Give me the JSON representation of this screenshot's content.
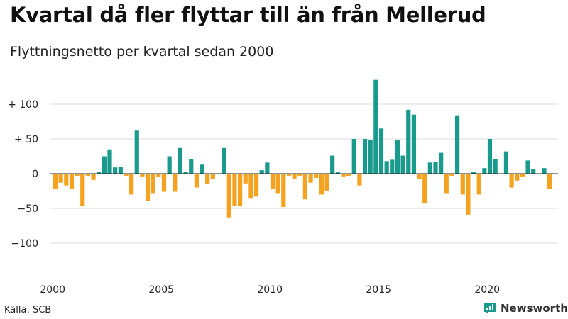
{
  "title": "Kvartal då fler flyttar till än från Mellerud",
  "subtitle": "Flyttningsnetto per kvartal sedan 2000",
  "source": "Källa: SCB",
  "brand": {
    "name": "Newsworthy",
    "logo_icon": "newsworthy-chart-icon"
  },
  "colors": {
    "positive": "#1a9a8c",
    "negative": "#f4a21f",
    "gridline": "#dddddd",
    "zero_line": "#222222",
    "brand": "#1a9a8c"
  },
  "chart_data": {
    "type": "bar",
    "title": "Kvartal då fler flyttar till än från Mellerud",
    "subtitle": "Flyttningsnetto per kvartal sedan 2000",
    "xlabel": "",
    "ylabel": "",
    "ylim": [
      -140,
      130
    ],
    "yticks": [
      {
        "value": 100,
        "label": "+ 100"
      },
      {
        "value": 50,
        "label": "+  50"
      },
      {
        "value": 0,
        "label": "0"
      },
      {
        "value": -50,
        "label": "−50"
      },
      {
        "value": -100,
        "label": "−100"
      }
    ],
    "xticks": [
      "2000",
      "2005",
      "2010",
      "2015",
      "2020"
    ],
    "start_year": 2000,
    "grid": true,
    "legend": "none",
    "values": [
      -22,
      -13,
      -17,
      -22,
      -3,
      -47,
      -3,
      -9,
      2,
      25,
      35,
      9,
      10,
      -3,
      -30,
      62,
      -4,
      -39,
      -28,
      -5,
      -26,
      25,
      -26,
      37,
      3,
      21,
      -20,
      13,
      -15,
      -8,
      0,
      37,
      -63,
      -47,
      -47,
      -14,
      -36,
      -33,
      5,
      16,
      -22,
      -28,
      -48,
      -3,
      -8,
      -3,
      -37,
      -13,
      -6,
      -30,
      -25,
      26,
      2,
      -4,
      -3,
      50,
      -17,
      50,
      49,
      135,
      65,
      18,
      20,
      49,
      26,
      92,
      85,
      -8,
      -43,
      16,
      17,
      30,
      -28,
      -3,
      84,
      -30,
      -59,
      3,
      -30,
      8,
      50,
      21,
      0,
      32,
      -20,
      -10,
      -4,
      19,
      7,
      0,
      8,
      -22
    ]
  }
}
